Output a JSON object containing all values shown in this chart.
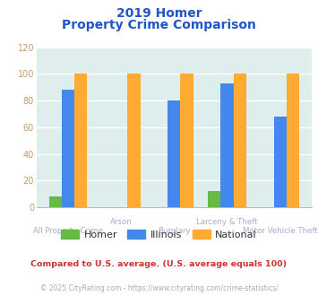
{
  "title_line1": "2019 Homer",
  "title_line2": "Property Crime Comparison",
  "title_color": "#2255cc",
  "categories": [
    "All Property Crime",
    "Arson",
    "Burglary",
    "Larceny & Theft",
    "Motor Vehicle Theft"
  ],
  "homer_values": [
    8,
    0,
    0,
    12,
    0
  ],
  "illinois_values": [
    88,
    0,
    80,
    93,
    68
  ],
  "national_values": [
    100,
    100,
    100,
    100,
    100
  ],
  "homer_color": "#66bb44",
  "illinois_color": "#4488ee",
  "national_color": "#ffaa33",
  "ylim": [
    0,
    120
  ],
  "yticks": [
    0,
    20,
    40,
    60,
    80,
    100,
    120
  ],
  "background_color": "#deeeed",
  "grid_color": "#ffffff",
  "xlabel_color": "#aaaacc",
  "xlabel_upper": [
    "",
    "Arson",
    "",
    "Larceny & Theft",
    ""
  ],
  "xlabel_lower": [
    "All Property Crime",
    "",
    "Burglary",
    "",
    "Motor Vehicle Theft"
  ],
  "legend_labels": [
    "Homer",
    "Illinois",
    "National"
  ],
  "footer1": "Compared to U.S. average. (U.S. average equals 100)",
  "footer2": "© 2025 CityRating.com - https://www.cityrating.com/crime-statistics/",
  "footer1_color": "#cc3333",
  "footer2_color": "#aaaaaa",
  "ytick_color": "#cc9966"
}
